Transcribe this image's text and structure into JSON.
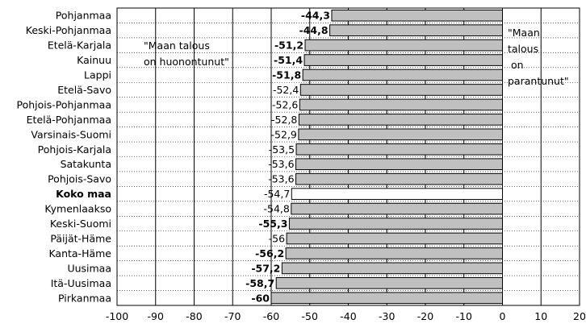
{
  "chart_data": {
    "type": "bar",
    "orientation": "horizontal",
    "categories": [
      "Pohjanmaa",
      "Keski-Pohjanmaa",
      "Etelä-Karjala",
      "Kainuu",
      "Lappi",
      "Etelä-Savo",
      "Pohjois-Pohjanmaa",
      "Etelä-Pohjanmaa",
      "Varsinais-Suomi",
      "Pohjois-Karjala",
      "Satakunta",
      "Pohjois-Savo",
      "Koko maa",
      "Kymenlaakso",
      "Keski-Suomi",
      "Päijät-Häme",
      "Kanta-Häme",
      "Uusimaa",
      "Itä-Uusimaa",
      "Pirkanmaa"
    ],
    "values": [
      -44.3,
      -44.8,
      -51.2,
      -51.4,
      -51.8,
      -52.4,
      -52.6,
      -52.8,
      -52.9,
      -53.5,
      -53.6,
      -53.6,
      -54.7,
      -54.8,
      -55.3,
      -56,
      -56.2,
      -57.2,
      -58.7,
      -60
    ],
    "value_labels": [
      "-44,3",
      "-44,8",
      "-51,2",
      "-51,4",
      "-51,8",
      "-52,4",
      "-52,6",
      "-52,8",
      "-52,9",
      "-53,5",
      "-53,6",
      "-53,6",
      "-54,7",
      "-54,8",
      "-55,3",
      "-56",
      "-56,2",
      "-57,2",
      "-58,7",
      "-60"
    ],
    "bold_value_labels": [
      true,
      true,
      true,
      true,
      true,
      false,
      false,
      false,
      false,
      false,
      false,
      false,
      false,
      false,
      true,
      false,
      true,
      true,
      true,
      true
    ],
    "highlight_category": "Koko maa",
    "xlim": [
      -100,
      20
    ],
    "xticks": [
      -100,
      -90,
      -80,
      -70,
      -60,
      -50,
      -40,
      -30,
      -20,
      -10,
      0,
      10,
      20
    ],
    "grid": "vertical major lines, dotted horizontal lines",
    "annotations": {
      "left": [
        "\"Maan talous",
        "on huonontunut\""
      ],
      "right": [
        "\"Maan",
        "talous",
        " on",
        "parantunut\""
      ]
    },
    "colors": {
      "bar": "#c0c0c0",
      "highlight_bar": "#ffffff",
      "bar_border": "#000000",
      "grid": "#000000"
    }
  }
}
